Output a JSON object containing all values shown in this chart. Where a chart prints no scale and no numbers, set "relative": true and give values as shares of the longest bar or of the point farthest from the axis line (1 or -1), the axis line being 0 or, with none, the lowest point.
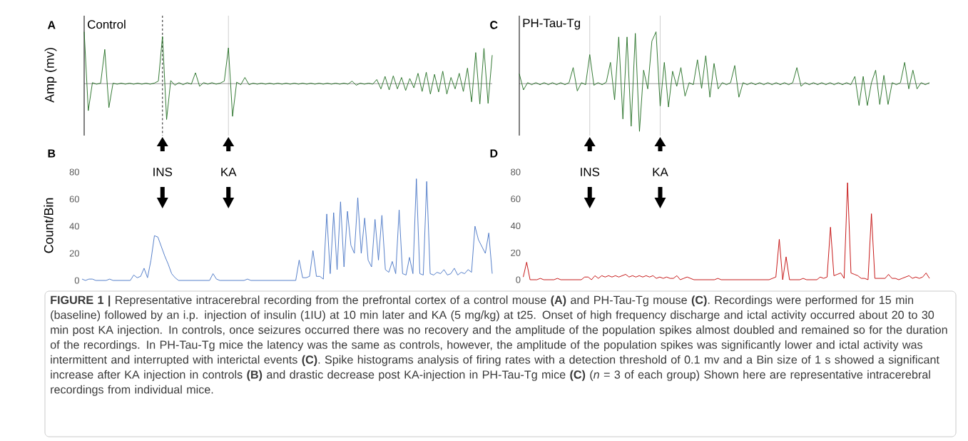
{
  "chart_data": [
    {
      "type": "line",
      "title": "A",
      "subtitle": "Control",
      "ylabel": "Amp (mv)",
      "relative": true,
      "color": "#1e6b1e",
      "tick_labels": false,
      "categories": [
        null,
        null,
        null,
        null,
        null,
        null,
        null,
        null,
        null,
        null,
        null,
        null,
        null,
        null,
        null,
        null,
        null,
        null,
        null,
        null,
        null,
        null,
        null,
        null,
        null,
        null,
        null,
        null,
        null,
        null,
        null,
        null,
        null,
        null,
        null,
        null,
        null,
        null,
        null,
        null,
        null,
        null,
        null,
        null,
        null,
        null,
        null,
        null,
        null,
        null,
        null,
        null,
        null,
        null,
        null,
        null,
        null,
        null,
        null,
        null,
        null,
        null,
        null,
        null,
        null,
        null,
        null,
        null,
        null,
        null,
        null,
        null,
        null,
        null,
        null,
        null,
        null,
        null,
        null,
        null,
        null,
        null,
        null,
        null,
        null,
        null,
        null,
        null,
        null,
        null,
        null,
        null,
        null,
        null,
        null,
        null,
        null,
        null,
        null,
        null
      ],
      "values": [
        1.0,
        -0.52,
        0.02,
        -0.01,
        0.01,
        0.66,
        -0.46,
        0.01,
        -0.01,
        0.01,
        -0.01,
        0.01,
        -0.01,
        0.01,
        -0.01,
        0.01,
        -0.01,
        0.01,
        0.05,
        0.91,
        -0.69,
        0.06,
        -0.03,
        0.02,
        -0.02,
        0.02,
        -0.01,
        0.21,
        -0.05,
        0.02,
        -0.01,
        0.02,
        -0.01,
        0.01,
        0.05,
        0.69,
        -0.63,
        0.03,
        -0.02,
        0.12,
        -0.02,
        0.01,
        -0.01,
        0.01,
        -0.01,
        0.01,
        -0.01,
        0.01,
        -0.01,
        0.01,
        -0.01,
        0.01,
        -0.01,
        0.01,
        -0.01,
        0.01,
        -0.01,
        0.01,
        -0.01,
        0.01,
        -0.01,
        0.01,
        -0.01,
        0.01,
        -0.01,
        0.05,
        -0.03,
        0.01,
        -0.01,
        0.01,
        -0.01,
        0.08,
        -0.1,
        0.14,
        -0.12,
        0.15,
        -0.1,
        0.12,
        -0.13,
        0.1,
        -0.08,
        0.2,
        -0.15,
        0.22,
        -0.2,
        0.18,
        -0.16,
        0.24,
        -0.2,
        0.12,
        -0.1,
        0.2,
        -0.15,
        0.3,
        -0.35,
        0.6,
        -0.39,
        0.68,
        -0.38,
        0.55
      ],
      "annotations": [
        "**FIGURE 1 |** Representative intracerebral recording from the prefrontal cortex of a control mouse **(A)** and PH-Tau-Tg mouse **(C)**. Recordings were performed for 15 min (baseline) followed by an i.p. injection of insulin (1IU) at 10 min later and KA (5 mg/kg) at t25. Onset of high frequency discharge and ictal activity occurred about 20 to 30 min post KA injection. In controls, once seizures occurred there was no recovery and the amplitude of the population spikes almost doubled and remained so for the duration of the recordings. In PH-Tau-Tg mice the latency was the same as controls, however, the amplitude of the population spikes was significantly lower and ictal activity was intermittent and interrupted with interictal events **(C)**. Spike histograms analysis of firing rates with a detection threshold of 0.1 mv and a Bin size of 1 s showed a significant increase after KA injection in controls **(B)** and drastic decrease post KA-injection in PH-Tau-Tg mice **(C)** (*n* = 3 of each group) Shown here are representative intracerebral recordings from individual mice."
      ]
    },
    {
      "type": "line",
      "title": "C",
      "subtitle": "PH-Tau-Tg",
      "relative": true,
      "color": "#1e6b1e",
      "tick_labels": false,
      "categories": [
        null,
        null,
        null,
        null,
        null,
        null,
        null,
        null,
        null,
        null,
        null,
        null,
        null,
        null,
        null,
        null,
        null,
        null,
        null,
        null,
        null,
        null,
        null,
        null,
        null,
        null,
        null,
        null,
        null,
        null,
        null,
        null,
        null,
        null,
        null,
        null,
        null,
        null,
        null,
        null,
        null,
        null,
        null,
        null,
        null,
        null,
        null,
        null,
        null,
        null,
        null,
        null,
        null,
        null,
        null,
        null,
        null,
        null,
        null,
        null,
        null,
        null,
        null,
        null,
        null,
        null,
        null,
        null,
        null,
        null,
        null,
        null,
        null,
        null,
        null,
        null,
        null,
        null,
        null,
        null,
        null,
        null,
        null,
        null,
        null,
        null,
        null,
        null,
        null,
        null,
        null,
        null,
        null,
        null,
        null,
        null,
        null,
        null,
        null,
        null
      ],
      "values": [
        0.19,
        -0.12,
        0.02,
        -0.02,
        0.02,
        -0.02,
        0.02,
        -0.02,
        0.02,
        -0.02,
        0.02,
        -0.02,
        0.02,
        0.31,
        -0.14,
        0.02,
        -0.02,
        0.56,
        -0.03,
        0.02,
        -0.02,
        0.03,
        0.41,
        -0.31,
        0.9,
        -0.68,
        0.9,
        -0.82,
        0.97,
        -0.92,
        0.26,
        -0.1,
        0.82,
        1.0,
        -0.43,
        0.41,
        -0.45,
        0.24,
        -0.05,
        0.31,
        -0.24,
        0.02,
        -0.02,
        0.46,
        -0.09,
        0.54,
        -0.26,
        0.39,
        -0.1,
        0.02,
        -0.02,
        0.02,
        0.35,
        -0.26,
        0.02,
        -0.02,
        0.02,
        -0.02,
        0.02,
        -0.02,
        0.02,
        -0.02,
        0.02,
        -0.02,
        0.02,
        -0.02,
        0.02,
        0.31,
        -0.05,
        0.02,
        -0.02,
        0.02,
        -0.02,
        0.02,
        -0.02,
        0.02,
        -0.02,
        0.02,
        -0.02,
        0.02,
        -0.02,
        0.14,
        -0.42,
        0.14,
        -0.42,
        0.02,
        0.26,
        -0.4,
        0.16,
        -0.4,
        0.02,
        -0.02,
        0.02,
        0.41,
        -0.1,
        0.26,
        -0.1,
        0.02,
        -0.02,
        0.02
      ]
    },
    {
      "type": "line",
      "title": "B",
      "ylabel": "Count/Bin",
      "color": "#4472c4",
      "ylim": [
        0,
        80
      ],
      "yticks": [
        0,
        20,
        40,
        60,
        80
      ],
      "tick_labels": "y",
      "categories": [
        null,
        null,
        null,
        null,
        null,
        null,
        null,
        null,
        null,
        null,
        null,
        null,
        null,
        null,
        null,
        null,
        null,
        null,
        null,
        null,
        null,
        null,
        null,
        null,
        null,
        null,
        null,
        null,
        null,
        null,
        null,
        null,
        null,
        null,
        null,
        null,
        null,
        null,
        null,
        null,
        null,
        null,
        null,
        null,
        null,
        null,
        null,
        null,
        null,
        null,
        null,
        null,
        null,
        null,
        null,
        null,
        null,
        null,
        null,
        null,
        null,
        null,
        null,
        null,
        null,
        null,
        null,
        null,
        null,
        null,
        null,
        null,
        null,
        null,
        null,
        null,
        null,
        null,
        null,
        null,
        null,
        null,
        null,
        null,
        null,
        null,
        null,
        null,
        null,
        null,
        null,
        null,
        null,
        null,
        null,
        null,
        null,
        null,
        null,
        null,
        null,
        null,
        null,
        null,
        null,
        null,
        null,
        null,
        null,
        null,
        null,
        null,
        null,
        null,
        null,
        null,
        null,
        null,
        null,
        null
      ],
      "values": [
        1,
        0,
        1,
        1,
        0,
        0,
        0,
        0,
        1,
        0,
        0,
        0,
        0,
        0,
        0,
        4,
        2,
        3,
        9,
        2,
        15,
        33,
        32,
        25,
        18,
        12,
        5,
        2,
        0,
        0,
        0,
        0,
        0,
        0,
        0,
        0,
        0,
        0,
        5,
        1,
        0,
        0,
        0,
        0,
        0,
        0,
        0,
        0,
        1,
        0,
        0,
        0,
        0,
        0,
        0,
        0,
        0,
        0,
        0,
        0,
        0,
        0,
        0,
        15,
        2,
        2,
        3,
        22,
        3,
        3,
        1,
        49,
        5,
        50,
        8,
        58,
        10,
        51,
        26,
        20,
        61,
        20,
        46,
        15,
        10,
        45,
        15,
        48,
        8,
        6,
        14,
        5,
        52,
        5,
        4,
        17,
        5,
        75,
        5,
        4,
        73,
        5,
        4,
        6,
        5,
        8,
        4,
        5,
        9,
        4,
        6,
        5,
        8,
        6,
        40,
        30,
        25,
        20,
        35,
        5
      ],
      "annotations": [
        "INS",
        "KA"
      ]
    },
    {
      "type": "line",
      "title": "D",
      "color": "#c00000",
      "ylim": [
        0,
        80
      ],
      "yticks": [
        0,
        20,
        40,
        60,
        80
      ],
      "tick_labels": "y",
      "categories": [
        null,
        null,
        null,
        null,
        null,
        null,
        null,
        null,
        null,
        null,
        null,
        null,
        null,
        null,
        null,
        null,
        null,
        null,
        null,
        null,
        null,
        null,
        null,
        null,
        null,
        null,
        null,
        null,
        null,
        null,
        null,
        null,
        null,
        null,
        null,
        null,
        null,
        null,
        null,
        null,
        null,
        null,
        null,
        null,
        null,
        null,
        null,
        null,
        null,
        null,
        null,
        null,
        null,
        null,
        null,
        null,
        null,
        null,
        null,
        null,
        null,
        null,
        null,
        null,
        null,
        null,
        null,
        null,
        null,
        null,
        null,
        null,
        null,
        null,
        null,
        null,
        null,
        null,
        null,
        null,
        null,
        null,
        null,
        null,
        null,
        null,
        null,
        null,
        null,
        null,
        null,
        null,
        null,
        null,
        null,
        null,
        null,
        null,
        null,
        null,
        null,
        null,
        null,
        null,
        null,
        null,
        null,
        null,
        null,
        null,
        null,
        null,
        null,
        null,
        null,
        null,
        null,
        null,
        null,
        null
      ],
      "values": [
        2,
        13,
        0,
        0,
        0,
        1,
        0,
        0,
        0,
        0,
        1,
        0,
        0,
        0,
        0,
        0,
        0,
        0,
        2,
        2,
        0,
        3,
        1,
        3,
        2,
        3,
        2,
        3,
        2,
        3,
        4,
        2,
        3,
        2,
        3,
        2,
        3,
        2,
        3,
        1,
        2,
        1,
        2,
        1,
        1,
        3,
        0,
        1,
        2,
        1,
        0,
        0,
        0,
        0,
        0,
        0,
        0,
        1,
        0,
        0,
        0,
        0,
        0,
        0,
        0,
        0,
        0,
        0,
        0,
        0,
        0,
        0,
        0,
        1,
        2,
        30,
        0,
        17,
        0,
        0,
        0,
        0,
        1,
        0,
        0,
        0,
        0,
        2,
        1,
        2,
        39,
        3,
        4,
        5,
        1,
        72,
        5,
        4,
        3,
        1,
        1,
        0,
        49,
        1,
        1,
        1,
        1,
        4,
        1,
        1,
        0,
        1,
        2,
        3,
        1,
        2,
        1,
        2,
        5,
        1
      ],
      "annotations": [
        "INS",
        "KA"
      ]
    }
  ]
}
